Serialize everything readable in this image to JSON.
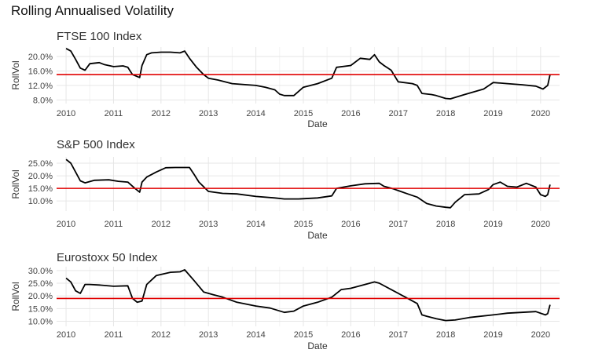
{
  "page": {
    "title": "Rolling Annualised Volatility"
  },
  "style": {
    "series_color": "#000000",
    "reference_color": "#e00000",
    "grid_color": "#e6e6e6"
  },
  "chart_data": [
    {
      "type": "line",
      "title": "FTSE 100 Index",
      "xlabel": "Date",
      "ylabel": "RollVol",
      "xlim": [
        2009.8,
        2020.4
      ],
      "ylim": [
        7.0,
        22.6
      ],
      "xticks": [
        "2010",
        "2011",
        "2012",
        "2013",
        "2014",
        "2015",
        "2016",
        "2017",
        "2018",
        "2019",
        "2020"
      ],
      "yticks": [
        {
          "v": 8,
          "label": "8.0%"
        },
        {
          "v": 12,
          "label": "12.0%"
        },
        {
          "v": 16,
          "label": "16.0%"
        },
        {
          "v": 20,
          "label": "20.0%"
        }
      ],
      "reference_line": 15.0,
      "x": [
        2010.0,
        2010.1,
        2010.2,
        2010.3,
        2010.4,
        2010.5,
        2010.7,
        2010.8,
        2011.0,
        2011.2,
        2011.3,
        2011.4,
        2011.55,
        2011.6,
        2011.7,
        2011.8,
        2012.0,
        2012.2,
        2012.4,
        2012.5,
        2012.6,
        2012.75,
        2012.9,
        2013.0,
        2013.2,
        2013.5,
        2013.8,
        2014.0,
        2014.2,
        2014.4,
        2014.5,
        2014.6,
        2014.8,
        2015.0,
        2015.3,
        2015.6,
        2015.7,
        2016.0,
        2016.2,
        2016.4,
        2016.5,
        2016.6,
        2016.7,
        2016.85,
        2017.0,
        2017.3,
        2017.4,
        2017.5,
        2017.7,
        2017.8,
        2018.0,
        2018.1,
        2018.4,
        2018.8,
        2019.0,
        2019.3,
        2019.6,
        2019.9,
        2020.05,
        2020.15,
        2020.2
      ],
      "values": [
        22.2,
        21.5,
        19.2,
        16.8,
        16.2,
        18.0,
        18.3,
        17.8,
        17.2,
        17.4,
        17.0,
        15.0,
        14.2,
        17.5,
        20.5,
        21.0,
        21.2,
        21.2,
        21.0,
        21.5,
        19.5,
        17.0,
        15.0,
        14.0,
        13.5,
        12.5,
        12.2,
        12.0,
        11.5,
        10.8,
        9.6,
        9.2,
        9.2,
        11.5,
        12.5,
        14.0,
        17.0,
        17.5,
        19.5,
        19.2,
        20.5,
        18.5,
        17.5,
        16.2,
        13.0,
        12.5,
        12.0,
        9.8,
        9.5,
        9.2,
        8.4,
        8.3,
        9.5,
        11.0,
        12.8,
        12.5,
        12.2,
        11.8,
        11.0,
        12.0,
        15.0
      ],
      "series_name": ""
    },
    {
      "type": "line",
      "title": "S&P 500 Index",
      "xlabel": "Date",
      "ylabel": "RollVol",
      "xlim": [
        2009.8,
        2020.4
      ],
      "ylim": [
        6.0,
        27.5
      ],
      "xticks": [
        "2010",
        "2011",
        "2012",
        "2013",
        "2014",
        "2015",
        "2016",
        "2017",
        "2018",
        "2019",
        "2020"
      ],
      "yticks": [
        {
          "v": 10,
          "label": "10.0%"
        },
        {
          "v": 15,
          "label": "15.0%"
        },
        {
          "v": 20,
          "label": "20.0%"
        },
        {
          "v": 25,
          "label": "25.0%"
        }
      ],
      "reference_line": 15.0,
      "x": [
        2010.0,
        2010.1,
        2010.2,
        2010.3,
        2010.4,
        2010.6,
        2010.9,
        2011.1,
        2011.3,
        2011.45,
        2011.55,
        2011.6,
        2011.7,
        2011.9,
        2012.1,
        2012.3,
        2012.5,
        2012.6,
        2012.7,
        2012.8,
        2013.0,
        2013.3,
        2013.6,
        2014.0,
        2014.4,
        2014.6,
        2014.9,
        2015.3,
        2015.6,
        2015.7,
        2016.0,
        2016.3,
        2016.6,
        2016.7,
        2016.9,
        2017.2,
        2017.4,
        2017.6,
        2017.8,
        2018.0,
        2018.1,
        2018.2,
        2018.4,
        2018.7,
        2018.9,
        2019.0,
        2019.15,
        2019.3,
        2019.5,
        2019.7,
        2019.9,
        2020.0,
        2020.1,
        2020.15,
        2020.2
      ],
      "values": [
        26.5,
        25.0,
        21.5,
        18.0,
        17.2,
        18.2,
        18.4,
        17.8,
        17.5,
        15.0,
        13.5,
        17.5,
        19.5,
        21.5,
        23.2,
        23.3,
        23.3,
        23.3,
        20.5,
        17.5,
        13.8,
        13.0,
        12.8,
        11.8,
        11.2,
        10.8,
        10.8,
        11.2,
        12.0,
        15.0,
        16.0,
        16.8,
        17.0,
        15.8,
        14.8,
        12.8,
        11.5,
        9.0,
        8.0,
        7.5,
        7.3,
        9.5,
        12.5,
        12.8,
        14.5,
        16.5,
        17.5,
        15.8,
        15.5,
        17.0,
        15.5,
        12.5,
        11.8,
        12.5,
        16.5
      ],
      "series_name": ""
    },
    {
      "type": "line",
      "title": "Eurostoxx 50 Index",
      "xlabel": "Date",
      "ylabel": "RollVol",
      "xlim": [
        2009.8,
        2020.4
      ],
      "ylim": [
        8.0,
        31.5
      ],
      "xticks": [
        "2010",
        "2011",
        "2012",
        "2013",
        "2014",
        "2015",
        "2016",
        "2017",
        "2018",
        "2019",
        "2020"
      ],
      "yticks": [
        {
          "v": 10,
          "label": "10.0%"
        },
        {
          "v": 15,
          "label": "15.0%"
        },
        {
          "v": 20,
          "label": "20.0%"
        },
        {
          "v": 25,
          "label": "25.0%"
        },
        {
          "v": 30,
          "label": "30.0%"
        }
      ],
      "reference_line": 19.0,
      "x": [
        2010.0,
        2010.1,
        2010.2,
        2010.3,
        2010.4,
        2010.5,
        2010.7,
        2011.0,
        2011.3,
        2011.4,
        2011.5,
        2011.6,
        2011.7,
        2011.9,
        2012.2,
        2012.4,
        2012.5,
        2012.7,
        2012.9,
        2013.1,
        2013.3,
        2013.6,
        2014.0,
        2014.3,
        2014.6,
        2014.8,
        2015.0,
        2015.3,
        2015.6,
        2015.8,
        2016.0,
        2016.3,
        2016.5,
        2016.6,
        2016.9,
        2017.1,
        2017.4,
        2017.5,
        2017.6,
        2017.8,
        2018.0,
        2018.2,
        2018.5,
        2019.0,
        2019.3,
        2019.6,
        2019.9,
        2020.1,
        2020.15,
        2020.2
      ],
      "values": [
        27.0,
        25.5,
        22.0,
        21.0,
        24.5,
        24.5,
        24.3,
        23.8,
        24.0,
        19.0,
        17.5,
        18.0,
        24.5,
        28.0,
        29.3,
        29.5,
        30.3,
        26.0,
        21.5,
        20.5,
        19.5,
        17.5,
        16.0,
        15.2,
        13.5,
        14.0,
        16.0,
        17.5,
        19.5,
        22.5,
        23.0,
        24.5,
        25.5,
        25.0,
        22.0,
        20.0,
        17.0,
        12.5,
        12.0,
        11.0,
        10.3,
        10.5,
        11.5,
        12.5,
        13.2,
        13.5,
        13.8,
        12.5,
        13.0,
        16.5
      ],
      "series_name": ""
    }
  ]
}
